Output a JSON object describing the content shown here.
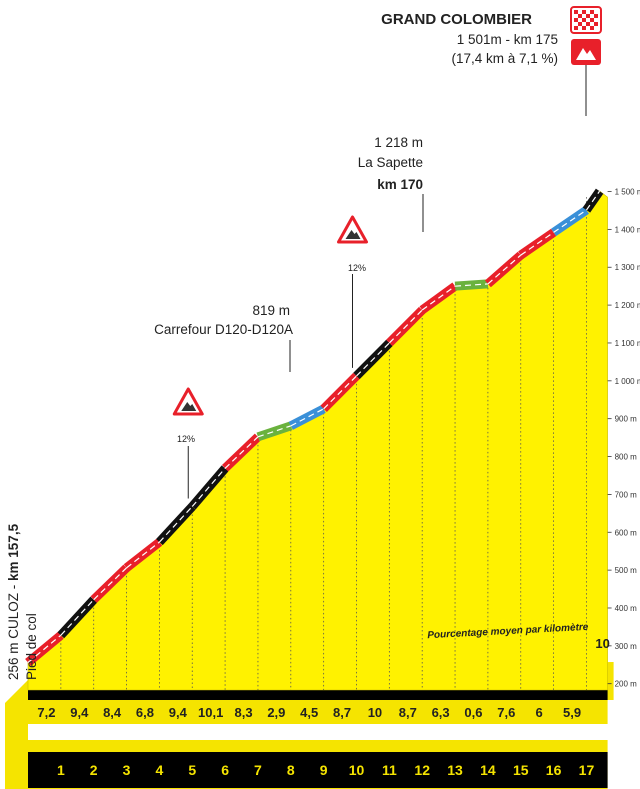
{
  "chart_data": {
    "type": "area",
    "title": "GRAND COLOMBIER",
    "summit": {
      "name": "GRAND COLOMBIER",
      "line1": "1 501m - km 175",
      "line2": "(17,4 km à 7,1 %)"
    },
    "start_label": {
      "prefix": "256 m CULOZ - ",
      "km": "km 157,5",
      "sub": "Pied de col"
    },
    "annotations": [
      {
        "l1": "819 m",
        "l2": "Carrefour D120-D120A"
      },
      {
        "l1": "1 218 m",
        "l2": "La Sapette",
        "l3": "km 170"
      }
    ],
    "max_gradients": [
      {
        "label": "12%",
        "km": 5
      },
      {
        "label": "12%",
        "km": 10
      }
    ],
    "legend_note": "Pourcentage moyen par kilomètre",
    "x_km": [
      0,
      1,
      2,
      3,
      4,
      5,
      6,
      7,
      8,
      9,
      10,
      11,
      12,
      13,
      14,
      15,
      16,
      17
    ],
    "x_tick_labels": [
      "1",
      "2",
      "3",
      "4",
      "5",
      "6",
      "7",
      "8",
      "9",
      "10",
      "11",
      "12",
      "13",
      "14",
      "15",
      "16",
      "17"
    ],
    "elevation_m": [
      256,
      328,
      422,
      506,
      574,
      668,
      769,
      852,
      881,
      926,
      1013,
      1100,
      1187,
      1250,
      1256,
      1332,
      1392,
      1451
    ],
    "summit_point": {
      "km": 17.4,
      "elevation_m": 1501
    },
    "segments": [
      {
        "grade": "7,2",
        "color": "#e8202a"
      },
      {
        "grade": "9,4",
        "color": "#111111"
      },
      {
        "grade": "8,4",
        "color": "#e8202a"
      },
      {
        "grade": "6,8",
        "color": "#e8202a"
      },
      {
        "grade": "9,4",
        "color": "#111111"
      },
      {
        "grade": "10,1",
        "color": "#111111"
      },
      {
        "grade": "8,3",
        "color": "#e8202a"
      },
      {
        "grade": "2,9",
        "color": "#6ab23e"
      },
      {
        "grade": "4,5",
        "color": "#3a90d8"
      },
      {
        "grade": "8,7",
        "color": "#e8202a"
      },
      {
        "grade": "10",
        "color": "#111111"
      },
      {
        "grade": "8,7",
        "color": "#e8202a"
      },
      {
        "grade": "6,3",
        "color": "#e8202a"
      },
      {
        "grade": "0,6",
        "color": "#6ab23e"
      },
      {
        "grade": "7,6",
        "color": "#e8202a"
      },
      {
        "grade": "6",
        "color": "#e8202a"
      },
      {
        "grade": "5,9",
        "color": "#3a90d8"
      },
      {
        "grade": "10",
        "color": "#111111"
      }
    ],
    "y_ticks": [
      {
        "v": 200,
        "label": "200 m"
      },
      {
        "v": 300,
        "label": "300 m"
      },
      {
        "v": 400,
        "label": "400 m"
      },
      {
        "v": 500,
        "label": "500 m"
      },
      {
        "v": 600,
        "label": "600 m"
      },
      {
        "v": 700,
        "label": "700 m"
      },
      {
        "v": 800,
        "label": "800 m"
      },
      {
        "v": 900,
        "label": "900 m"
      },
      {
        "v": 1000,
        "label": "1 000 m"
      },
      {
        "v": 1100,
        "label": "1 100 m"
      },
      {
        "v": 1200,
        "label": "1 200 m"
      },
      {
        "v": 1300,
        "label": "1 300 m"
      },
      {
        "v": 1400,
        "label": "1 400 m"
      },
      {
        "v": 1500,
        "label": "1 500 m"
      }
    ],
    "ylim": [
      256,
      1501
    ],
    "colors": {
      "fill": "#fff200",
      "base": "#f5e400",
      "band": "#000000",
      "red": "#e8202a",
      "black": "#111111",
      "green": "#6ab23e",
      "blue": "#3a90d8"
    }
  }
}
